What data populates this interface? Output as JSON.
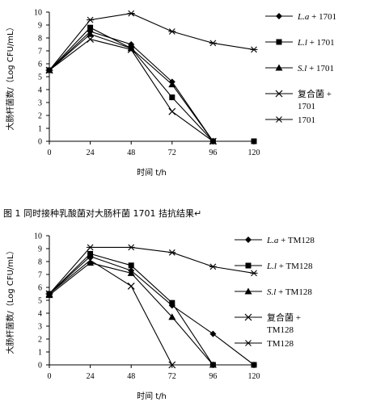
{
  "caption": "图 1   同时接种乳酸菌对大肠杆菌 1701 拮抗结果↵",
  "chart_data": [
    {
      "type": "line",
      "x": [
        0,
        24,
        48,
        72,
        96,
        120
      ],
      "xlabel": "时间 t/h",
      "ylabel": "大肠杆菌数/（Log CFU/mL）",
      "ylim": [
        0,
        10
      ],
      "xlim": [
        0,
        120
      ],
      "xticks": [
        "0",
        "24",
        "48",
        "72",
        "96",
        "120"
      ],
      "yticks": [
        "0",
        "1",
        "2",
        "3",
        "4",
        "5",
        "6",
        "7",
        "8",
        "9",
        "10"
      ],
      "grid": false,
      "legend_position": "right",
      "series": [
        {
          "name": "L.a + 1701",
          "marker": "diamond",
          "values": [
            5.5,
            8.5,
            7.5,
            4.6,
            0,
            null
          ]
        },
        {
          "name": "L.l + 1701",
          "marker": "square",
          "values": [
            5.5,
            8.8,
            7.2,
            3.4,
            0,
            0
          ]
        },
        {
          "name": "S.l + 1701",
          "marker": "triangle",
          "values": [
            5.5,
            8.3,
            7.2,
            4.4,
            0,
            null
          ]
        },
        {
          "name": "复合菌 + 1701",
          "marker": "x",
          "values": [
            5.5,
            7.9,
            7.1,
            2.3,
            0,
            null
          ]
        },
        {
          "name": "1701",
          "marker": "star",
          "values": [
            5.5,
            9.4,
            9.9,
            8.5,
            7.6,
            7.1
          ]
        }
      ]
    },
    {
      "type": "line",
      "x": [
        0,
        24,
        48,
        72,
        96,
        120
      ],
      "xlabel": "时间 t/h",
      "ylabel": "大肠杆菌数/（Log CFU/mL）",
      "ylim": [
        0,
        10
      ],
      "xlim": [
        0,
        120
      ],
      "xticks": [
        "0",
        "24",
        "48",
        "72",
        "96",
        "120"
      ],
      "yticks": [
        "0",
        "1",
        "2",
        "3",
        "4",
        "5",
        "6",
        "7",
        "8",
        "9",
        "10"
      ],
      "grid": false,
      "legend_position": "right",
      "series": [
        {
          "name": "L.a + TM128",
          "marker": "diamond",
          "values": [
            5.5,
            8.4,
            7.3,
            4.6,
            2.4,
            0
          ]
        },
        {
          "name": "L.l + TM128",
          "marker": "square",
          "values": [
            5.5,
            8.6,
            7.7,
            4.8,
            0,
            0
          ]
        },
        {
          "name": "S.l + TM128",
          "marker": "triangle",
          "values": [
            5.4,
            7.9,
            7.1,
            3.7,
            0,
            null
          ]
        },
        {
          "name": "复合菌 + TM128",
          "marker": "x",
          "values": [
            5.5,
            8.1,
            6.1,
            0,
            null,
            null
          ]
        },
        {
          "name": "TM128",
          "marker": "star",
          "values": [
            5.5,
            9.1,
            9.1,
            8.7,
            7.6,
            7.1
          ]
        }
      ]
    }
  ]
}
